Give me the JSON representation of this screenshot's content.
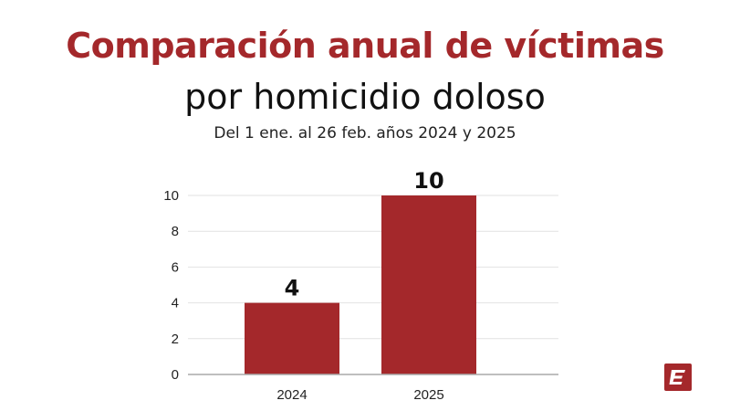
{
  "colors": {
    "accent": "#a4282b",
    "bar": "#a4282b",
    "grid": "#e2e2e2",
    "axis": "#aaaaaa"
  },
  "chart_data": {
    "type": "bar",
    "title": "Comparación anual de víctimas",
    "subtitle": "por homicidio doloso",
    "note": "Del 1 ene. al 26 feb. años 2024 y 2025",
    "categories": [
      "2024",
      "2025"
    ],
    "values": [
      4,
      10
    ],
    "data_labels": [
      "4",
      "10"
    ],
    "yticks": [
      0,
      2,
      4,
      6,
      8,
      10
    ],
    "ylim": [
      0,
      10
    ],
    "grid": true,
    "xlabel": "",
    "ylabel": ""
  },
  "logo": {
    "icon": "publisher-logo-icon",
    "letter": "E"
  }
}
